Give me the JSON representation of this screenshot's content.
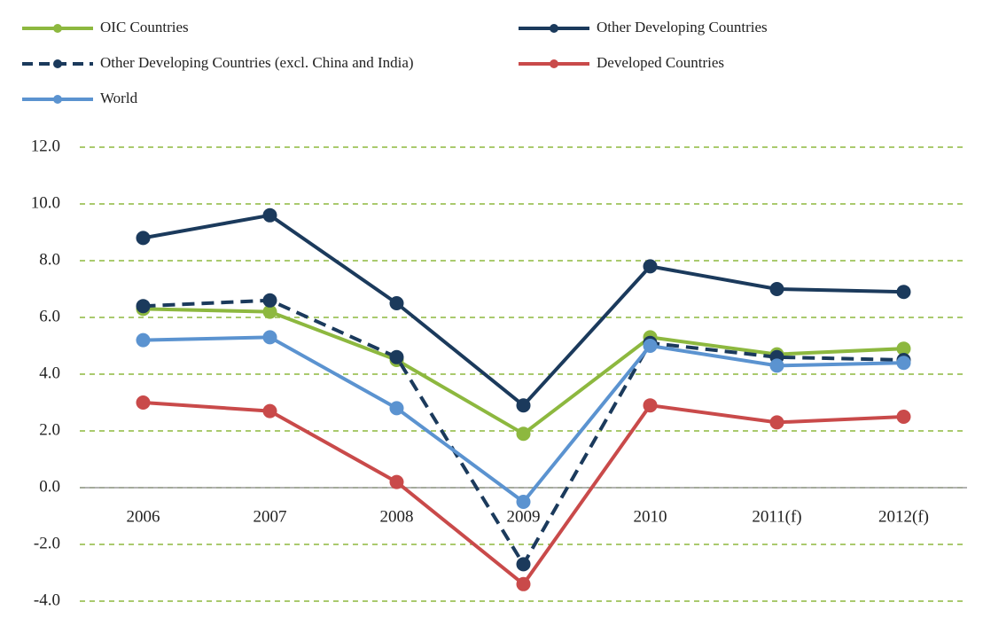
{
  "chart_data": {
    "type": "line",
    "categories": [
      "2006",
      "2007",
      "2008",
      "2009",
      "2010",
      "2011(f)",
      "2012(f)"
    ],
    "series": [
      {
        "name": "OIC Countries",
        "color": "#8db83f",
        "style": "solid",
        "values": [
          6.3,
          6.2,
          4.5,
          1.9,
          5.3,
          4.7,
          4.9
        ]
      },
      {
        "name": "Other Developing Countries",
        "color": "#1b3a5c",
        "style": "solid",
        "values": [
          8.8,
          9.6,
          6.5,
          2.9,
          7.8,
          7.0,
          6.9
        ]
      },
      {
        "name": "Other Developing Countries (excl. China and India)",
        "color": "#1b3a5c",
        "style": "dashed",
        "values": [
          6.4,
          6.6,
          4.6,
          -2.7,
          5.1,
          4.6,
          4.5
        ]
      },
      {
        "name": "Developed Countries",
        "color": "#c94a4a",
        "style": "solid",
        "values": [
          3.0,
          2.7,
          0.2,
          -3.4,
          2.9,
          2.3,
          2.5
        ]
      },
      {
        "name": "World",
        "color": "#5b93d0",
        "style": "solid",
        "values": [
          5.2,
          5.3,
          2.8,
          -0.5,
          5.0,
          4.3,
          4.4
        ]
      }
    ],
    "ylim": [
      -4,
      12
    ],
    "yticks": [
      {
        "value": -4,
        "label": "-4.0"
      },
      {
        "value": -2,
        "label": "-2.0"
      },
      {
        "value": 0,
        "label": "0.0"
      },
      {
        "value": 2,
        "label": "2.0"
      },
      {
        "value": 4,
        "label": "4.0"
      },
      {
        "value": 6,
        "label": "6.0"
      },
      {
        "value": 8,
        "label": "8.0"
      },
      {
        "value": 10,
        "label": "10.0"
      },
      {
        "value": 12,
        "label": "12.0"
      }
    ],
    "grid": true,
    "legend": "top"
  }
}
